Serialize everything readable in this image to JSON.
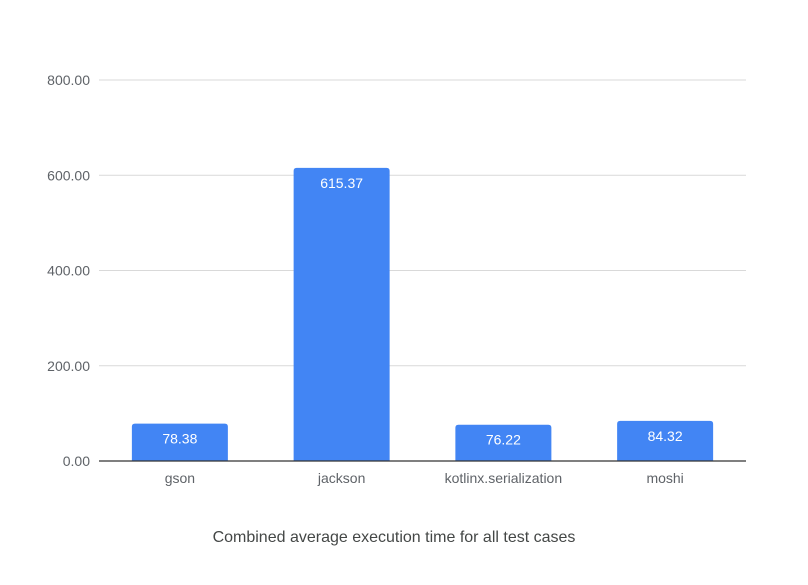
{
  "chart_data": {
    "type": "bar",
    "categories": [
      "gson",
      "jackson",
      "kotlinx.serialization",
      "moshi"
    ],
    "values": [
      78.38,
      615.37,
      76.22,
      84.32
    ],
    "data_labels": [
      "78.38",
      "615.37",
      "76.22",
      "84.32"
    ],
    "title": "",
    "caption": "Combined average execution time for all test cases",
    "xlabel": "",
    "ylabel": "",
    "ylim": [
      0,
      800
    ],
    "yticks": [
      0,
      200,
      400,
      600,
      800
    ],
    "ytick_labels": [
      "0.00",
      "200.00",
      "400.00",
      "600.00",
      "800.00"
    ],
    "grid": true,
    "legend": "none",
    "colors": {
      "bar": "#4285f4",
      "grid": "#d9d9d9",
      "axis": "#333333"
    }
  }
}
